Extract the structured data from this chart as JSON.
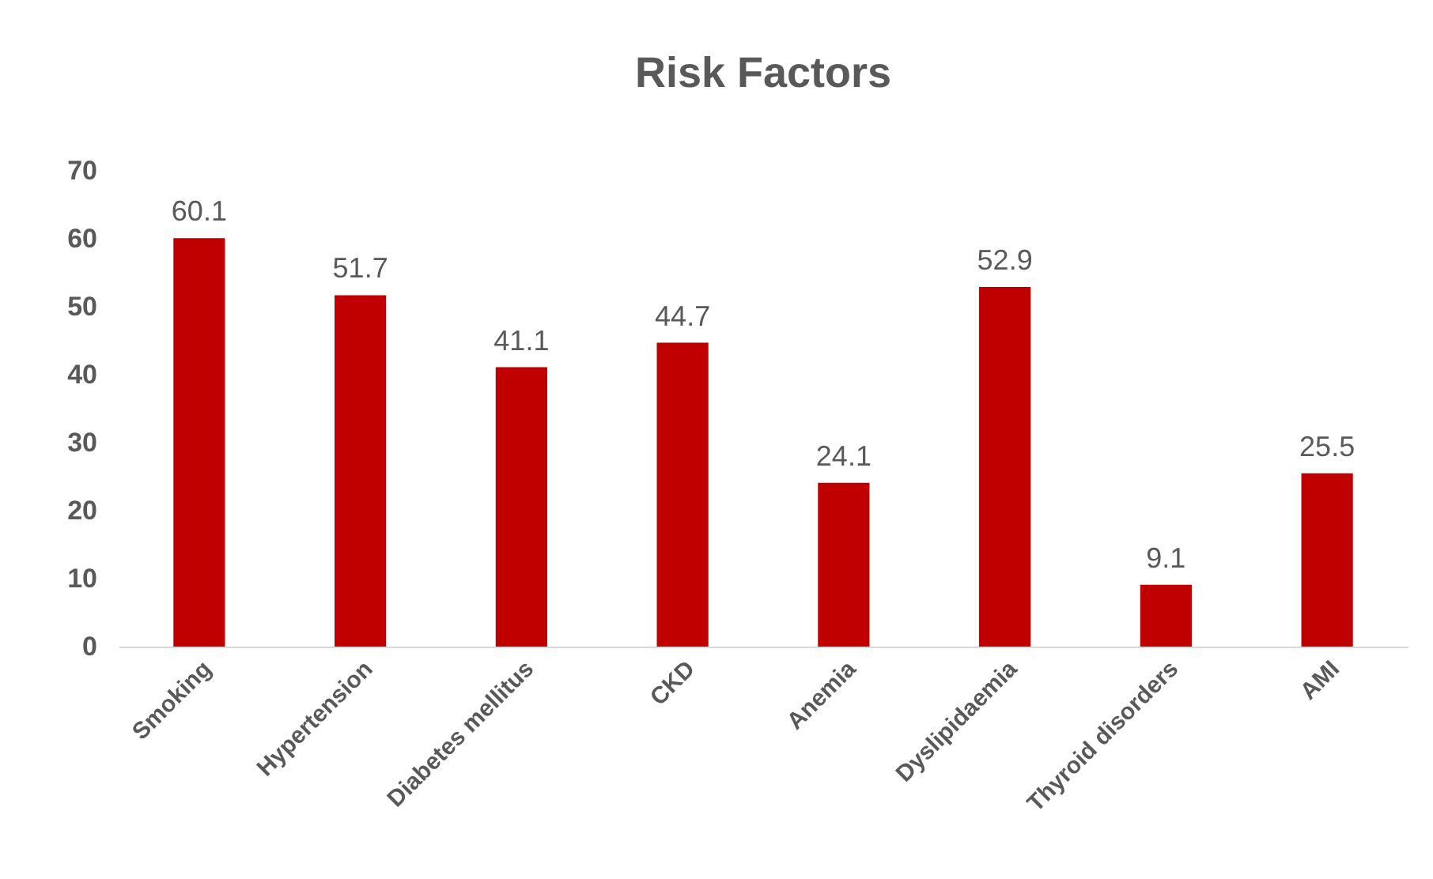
{
  "chart_data": {
    "type": "bar",
    "title": "Risk Factors",
    "categories": [
      "Smoking",
      "Hypertension",
      "Diabetes mellitus",
      "CKD",
      "Anemia",
      "Dyslipidaemia",
      "Thyroid disorders",
      "AMI"
    ],
    "values": [
      60.1,
      51.7,
      41.1,
      44.7,
      24.1,
      52.9,
      9.1,
      25.5
    ],
    "color": "#c00000",
    "ylim": [
      0,
      70
    ],
    "yticks": [
      0,
      10,
      20,
      30,
      40,
      50,
      60,
      70
    ],
    "data_labels": true
  }
}
